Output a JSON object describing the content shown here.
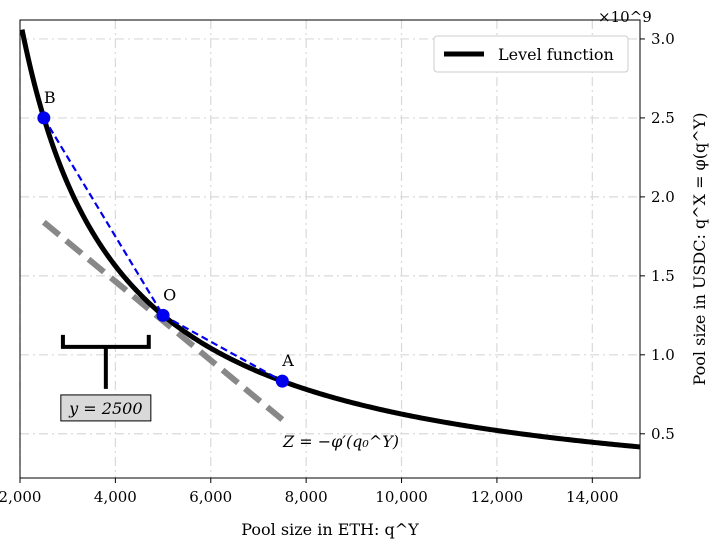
{
  "chart_data": {
    "type": "line",
    "xlabel": "Pool size in ETH: q^Y",
    "ylabel": "Pool size in USDC: q^X = φ(q^Y)",
    "y_multiplier": "×10^9",
    "xlim": [
      2000,
      15000
    ],
    "ylim": [
      0.22,
      3.12
    ],
    "x_ticks": [
      2000,
      4000,
      6000,
      8000,
      10000,
      12000,
      14000
    ],
    "x_tick_labels": [
      "2,000",
      "4,000",
      "6,000",
      "8,000",
      "10,000",
      "12,000",
      "14,000"
    ],
    "y_ticks": [
      0.5,
      1.0,
      1.5,
      2.0,
      2.5,
      3.0
    ],
    "y_tick_labels": [
      "0.5",
      "1.0",
      "1.5",
      "2.0",
      "2.5",
      "3.0"
    ],
    "y_axis_side": "right",
    "grid": true,
    "legend": {
      "placement": "top-right",
      "entries": [
        "Level function"
      ]
    },
    "series": [
      {
        "name": "Level function",
        "function": "k / x",
        "k": 6250000,
        "x_range": [
          2000,
          15000
        ],
        "color": "#000000"
      }
    ],
    "points": [
      {
        "label": "B",
        "x": 2500,
        "y": 2.5
      },
      {
        "label": "O",
        "x": 5000,
        "y": 1.25
      },
      {
        "label": "A",
        "x": 7500,
        "y": 0.8333
      }
    ],
    "chords": [
      {
        "from": "B",
        "to": "O",
        "color": "#0000ee",
        "style": "dashed"
      },
      {
        "from": "O",
        "to": "A",
        "color": "#0000ee",
        "style": "dashed"
      }
    ],
    "tangent": {
      "x": [
        2500,
        7500
      ],
      "y": [
        1.84,
        0.59
      ],
      "color": "#888888",
      "style": "dashed",
      "label": "Z = −φ′(q₀^Y)"
    },
    "annotation": {
      "text": "y = 2500",
      "bracket_x_range": [
        2900,
        4700
      ],
      "bracket_y": 1.05
    }
  }
}
